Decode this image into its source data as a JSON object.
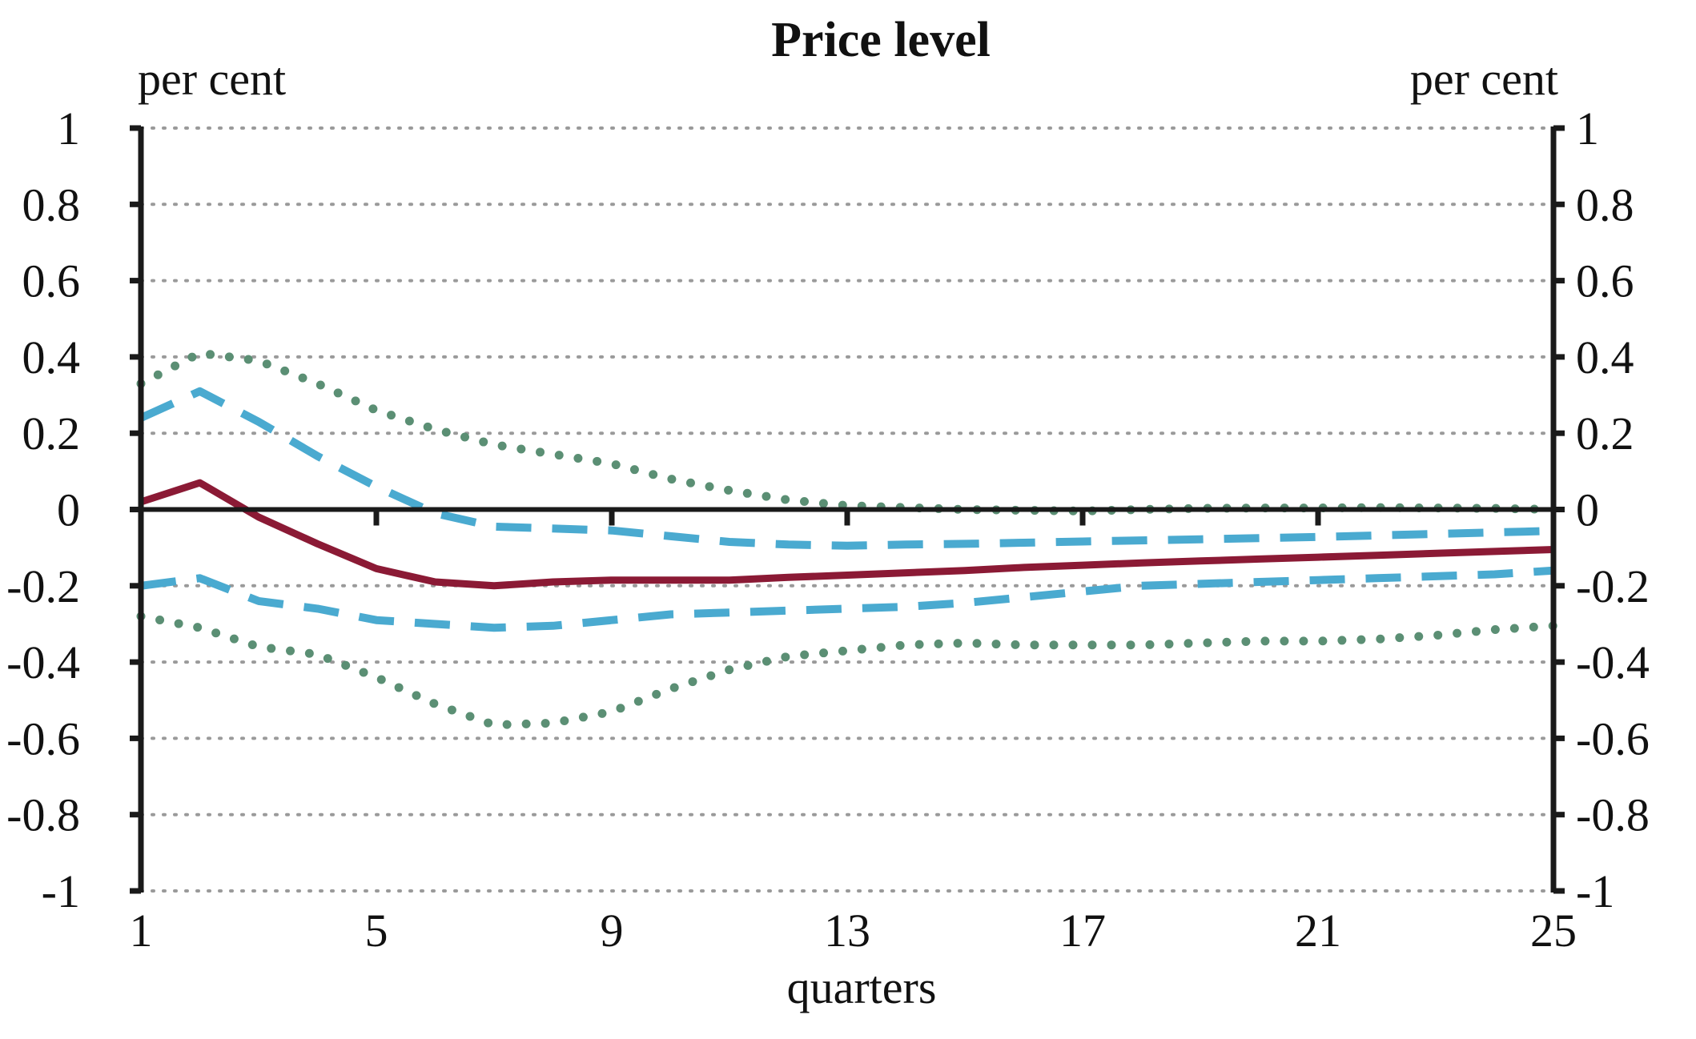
{
  "chart_data": {
    "type": "line",
    "title": "Price level",
    "left_unit": "per cent",
    "right_unit": "per cent",
    "xlabel": "quarters",
    "ylabel": "",
    "x_ticks": [
      1,
      5,
      9,
      13,
      17,
      21,
      25
    ],
    "xlim": [
      1,
      25
    ],
    "left_y_ticks": [
      "1",
      "0.8",
      "0.6",
      "0.4",
      "0.2",
      "0",
      "-0.2",
      "-0.4",
      "-0.6",
      "-0.8",
      "-1"
    ],
    "right_y_ticks": [
      "1",
      "0.8",
      "0.6",
      "0.4",
      "0.2",
      "0",
      "-0.2",
      "-0.4",
      "-0.6",
      "-0.8",
      "-1"
    ],
    "ylim": [
      -1,
      1
    ],
    "grid": true,
    "zero_line": true,
    "x": [
      1,
      2,
      3,
      4,
      5,
      6,
      7,
      8,
      9,
      10,
      11,
      12,
      13,
      14,
      15,
      16,
      17,
      18,
      19,
      20,
      21,
      22,
      23,
      24,
      25
    ],
    "series": [
      {
        "style": "solid",
        "color": "#8b1a35",
        "values": [
          0.02,
          0.07,
          -0.02,
          -0.09,
          -0.155,
          -0.19,
          -0.2,
          -0.19,
          -0.185,
          -0.185,
          -0.185,
          -0.178,
          -0.172,
          -0.166,
          -0.16,
          -0.152,
          -0.146,
          -0.14,
          -0.135,
          -0.13,
          -0.125,
          -0.12,
          -0.115,
          -0.11,
          -0.105
        ]
      },
      {
        "style": "dashed",
        "color": "#4aaad0",
        "values": [
          0.24,
          0.31,
          0.23,
          0.14,
          0.06,
          -0.01,
          -0.045,
          -0.05,
          -0.055,
          -0.07,
          -0.085,
          -0.092,
          -0.095,
          -0.092,
          -0.09,
          -0.087,
          -0.084,
          -0.081,
          -0.078,
          -0.075,
          -0.072,
          -0.068,
          -0.064,
          -0.06,
          -0.056
        ]
      },
      {
        "style": "dashed",
        "color": "#4aaad0",
        "values": [
          -0.2,
          -0.18,
          -0.24,
          -0.26,
          -0.29,
          -0.3,
          -0.31,
          -0.305,
          -0.29,
          -0.275,
          -0.27,
          -0.265,
          -0.26,
          -0.255,
          -0.245,
          -0.23,
          -0.215,
          -0.2,
          -0.195,
          -0.19,
          -0.185,
          -0.18,
          -0.175,
          -0.17,
          -0.16
        ]
      },
      {
        "style": "dotted",
        "color": "#5b8f74",
        "values": [
          0.33,
          0.41,
          0.39,
          0.33,
          0.26,
          0.21,
          0.17,
          0.145,
          0.12,
          0.08,
          0.05,
          0.025,
          0.01,
          0.005,
          0.0,
          -0.002,
          -0.004,
          0.0,
          0.003,
          0.004,
          0.004,
          0.005,
          0.004,
          0.003,
          0.0
        ]
      },
      {
        "style": "dotted",
        "color": "#5b8f74",
        "values": [
          -0.28,
          -0.31,
          -0.36,
          -0.38,
          -0.44,
          -0.51,
          -0.565,
          -0.56,
          -0.53,
          -0.47,
          -0.42,
          -0.385,
          -0.37,
          -0.355,
          -0.35,
          -0.355,
          -0.355,
          -0.355,
          -0.35,
          -0.345,
          -0.345,
          -0.34,
          -0.33,
          -0.315,
          -0.305
        ]
      }
    ]
  }
}
